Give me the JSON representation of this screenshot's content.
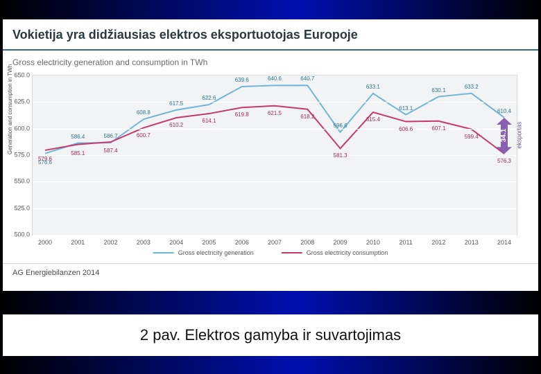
{
  "slide": {
    "title": "Vokietija yra didžiausias elektros eksportuotojas Europoje",
    "caption": "2 pav. Elektros gamyba ir suvartojimas",
    "source": "AG Energiebilanzen 2014",
    "frame_gradient": [
      "#000000",
      "#0010b0",
      "#000000"
    ]
  },
  "chart": {
    "type": "line",
    "title": "Gross electricity generation and consumption in TWh",
    "ylabel": "Generation and consumption in TWh",
    "background_color": "#f2f3f4",
    "plot_border_color": "#d8d9da",
    "grid_color": "#ffffff",
    "ylim": [
      500.0,
      650.0
    ],
    "ytick_step": 25.0,
    "yticks": [
      500.0,
      525.0,
      550.0,
      575.0,
      600.0,
      625.0,
      650.0
    ],
    "categories": [
      "2000",
      "2001",
      "2002",
      "2003",
      "2004",
      "2005",
      "2006",
      "2007",
      "2008",
      "2009",
      "2010",
      "2011",
      "2012",
      "2013",
      "2014"
    ],
    "series": [
      {
        "id": "generation",
        "name": "Gross electricity generation",
        "color": "#6fb7d6",
        "line_width": 2,
        "label_color": "#2f768f",
        "values": [
          576.6,
          586.4,
          586.7,
          608.8,
          617.5,
          622.6,
          639.6,
          640.6,
          640.7,
          596.6,
          633.1,
          613.1,
          630.1,
          633.2,
          610.4
        ],
        "label_offset": "above"
      },
      {
        "id": "consumption",
        "name": "Gross electricity consumption",
        "color": "#c43a6a",
        "line_width": 2,
        "label_color": "#a02b56",
        "values": [
          579.6,
          585.1,
          587.4,
          600.7,
          610.2,
          614.1,
          619.8,
          621.5,
          618.2,
          581.3,
          615.4,
          606.6,
          607.1,
          599.4,
          576.3
        ],
        "label_offset": "below"
      }
    ],
    "export_annotation": {
      "value": "34.1",
      "label": "eksportas",
      "color": "#8a5eb0",
      "text_color": "#ffffff",
      "x_index": 14
    },
    "tick_color": "#555555",
    "tick_fontsize": 9,
    "label_fontsize": 8
  },
  "legend": {
    "items": [
      {
        "color": "#6fb7d6",
        "label": "Gross electricity generation"
      },
      {
        "color": "#c43a6a",
        "label": "Gross electricity consumption"
      }
    ]
  }
}
